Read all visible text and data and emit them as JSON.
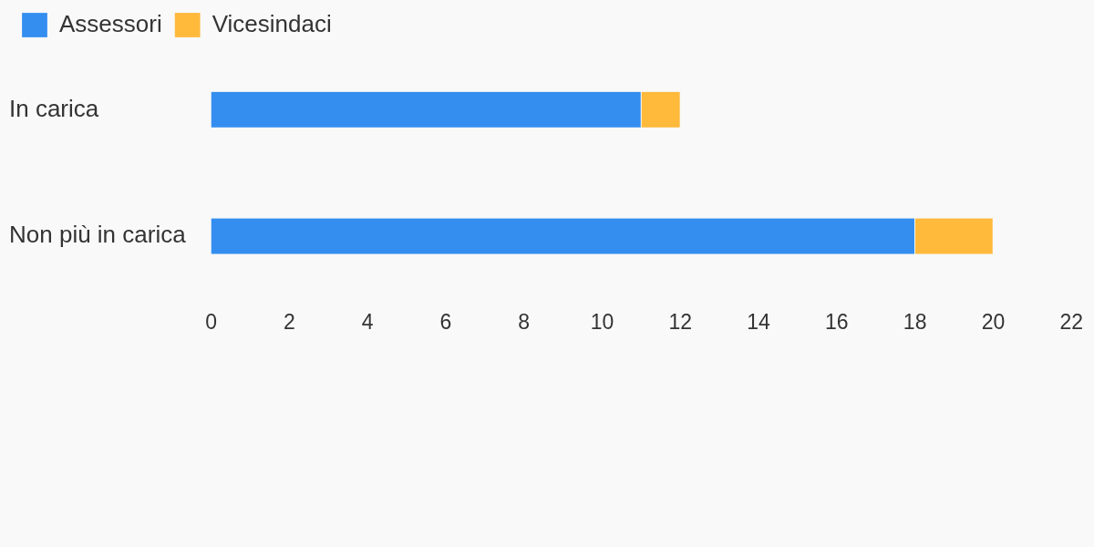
{
  "chart_data": {
    "type": "bar",
    "orientation": "horizontal",
    "stacked": true,
    "legend": "top left",
    "categories": [
      "In carica",
      "Non più in carica"
    ],
    "series": [
      {
        "name": "Assessori",
        "color": "#348ef0",
        "values": [
          11,
          18
        ]
      },
      {
        "name": "Vicesindaci",
        "color": "#ffb93b",
        "values": [
          1,
          2
        ]
      }
    ],
    "xlim": [
      0,
      22
    ],
    "xticks": [
      0,
      2,
      4,
      6,
      8,
      10,
      12,
      14,
      16,
      18,
      20,
      22
    ]
  }
}
